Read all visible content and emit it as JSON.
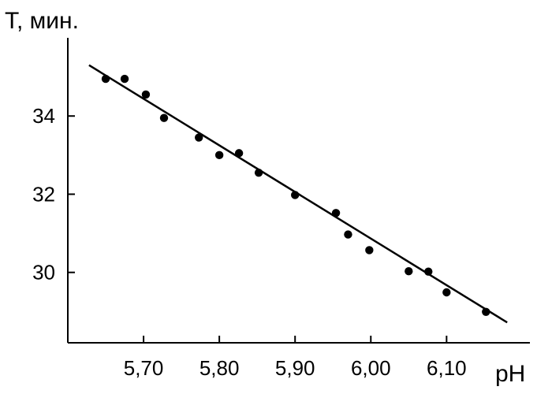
{
  "chart_data": {
    "type": "scatter",
    "ylabel": "T, мин.",
    "xlabel": "pH",
    "x_ticks": [
      5.7,
      5.8,
      5.9,
      6.0,
      6.1
    ],
    "x_tick_labels": [
      "5,70",
      "5,80",
      "5,90",
      "6,00",
      "6,10"
    ],
    "y_ticks": [
      30,
      32,
      34
    ],
    "y_tick_labels": [
      "30",
      "32",
      "34"
    ],
    "xlim": [
      5.6,
      6.21
    ],
    "ylim": [
      28.2,
      36.0
    ],
    "grid": false,
    "series": [
      {
        "points": [
          {
            "x": 5.65,
            "y": 34.95
          },
          {
            "x": 5.675,
            "y": 34.95
          },
          {
            "x": 5.703,
            "y": 34.55
          },
          {
            "x": 5.727,
            "y": 33.95
          },
          {
            "x": 5.773,
            "y": 33.45
          },
          {
            "x": 5.8,
            "y": 33.0
          },
          {
            "x": 5.826,
            "y": 33.05
          },
          {
            "x": 5.852,
            "y": 32.55
          },
          {
            "x": 5.9,
            "y": 31.98
          },
          {
            "x": 5.954,
            "y": 31.52
          },
          {
            "x": 5.97,
            "y": 30.97
          },
          {
            "x": 5.998,
            "y": 30.57
          },
          {
            "x": 6.05,
            "y": 30.03
          },
          {
            "x": 6.076,
            "y": 30.02
          },
          {
            "x": 6.1,
            "y": 29.49
          },
          {
            "x": 6.152,
            "y": 28.99
          }
        ]
      }
    ],
    "trendline": {
      "x": [
        5.628,
        6.18
      ],
      "y": [
        35.3,
        28.72
      ]
    }
  }
}
